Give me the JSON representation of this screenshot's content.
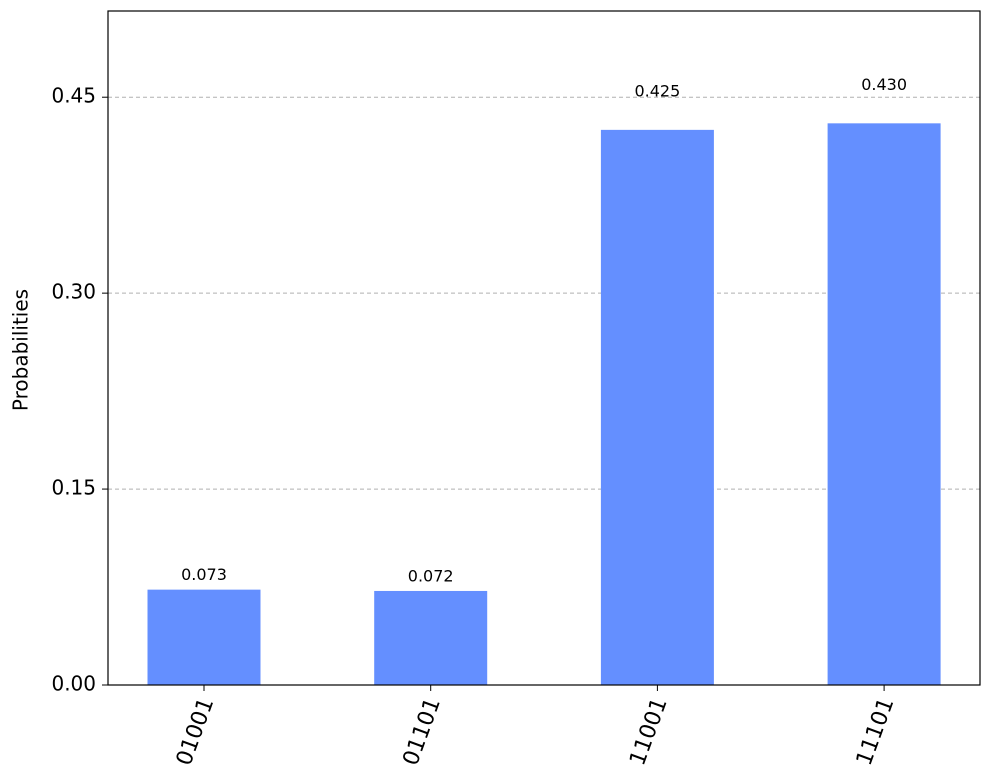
{
  "chart_data": {
    "type": "bar",
    "y_label": "Probabilities",
    "categories": [
      "01001",
      "01101",
      "11001",
      "11101"
    ],
    "values": [
      0.073,
      0.072,
      0.425,
      0.43
    ],
    "value_labels": [
      "0.073",
      "0.072",
      "0.425",
      "0.430"
    ],
    "color": "#648fff",
    "ylim": [
      0,
      0.516
    ],
    "yticks": [
      {
        "value": 0,
        "label": "0.00"
      },
      {
        "value": 0.15,
        "label": "0.15"
      },
      {
        "value": 0.3,
        "label": "0.30"
      },
      {
        "value": 0.45,
        "label": "0.45"
      }
    ],
    "grid": true
  }
}
